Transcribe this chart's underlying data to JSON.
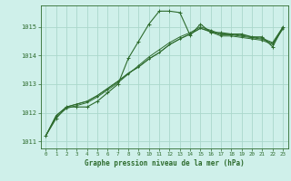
{
  "background_color": "#cff0ea",
  "grid_color": "#aad8cc",
  "line_color": "#2d6b2d",
  "xlabel": "Graphe pression niveau de la mer (hPa)",
  "ylim": [
    1010.75,
    1015.75
  ],
  "yticks": [
    1011,
    1012,
    1013,
    1014,
    1015
  ],
  "xlim": [
    -0.5,
    23.5
  ],
  "xticks": [
    0,
    1,
    2,
    3,
    4,
    5,
    6,
    7,
    8,
    9,
    10,
    11,
    12,
    13,
    14,
    15,
    16,
    17,
    18,
    19,
    20,
    21,
    22,
    23
  ],
  "series": [
    [
      1011.2,
      1011.8,
      1012.2,
      1012.2,
      1012.2,
      1012.4,
      1012.7,
      1013.0,
      1013.9,
      1014.5,
      1015.1,
      1015.55,
      1015.55,
      1015.5,
      1014.7,
      1015.1,
      1014.8,
      1014.8,
      1014.75,
      1014.75,
      1014.65,
      1014.65,
      1014.3,
      1015.0
    ],
    [
      1011.2,
      1011.85,
      1012.15,
      1012.25,
      1012.35,
      1012.55,
      1012.8,
      1013.05,
      1013.35,
      1013.65,
      1013.95,
      1014.2,
      1014.45,
      1014.65,
      1014.8,
      1015.0,
      1014.88,
      1014.75,
      1014.75,
      1014.7,
      1014.65,
      1014.6,
      1014.45,
      1015.0
    ],
    [
      1011.2,
      1011.9,
      1012.2,
      1012.3,
      1012.4,
      1012.6,
      1012.85,
      1013.1,
      1013.38,
      1013.6,
      1013.88,
      1014.1,
      1014.38,
      1014.58,
      1014.75,
      1014.95,
      1014.85,
      1014.72,
      1014.72,
      1014.67,
      1014.62,
      1014.57,
      1014.42,
      1014.97
    ],
    [
      1011.2,
      1011.9,
      1012.2,
      1012.3,
      1012.4,
      1012.6,
      1012.85,
      1013.1,
      1013.38,
      1013.6,
      1013.88,
      1014.1,
      1014.38,
      1014.58,
      1014.75,
      1014.95,
      1014.82,
      1014.68,
      1014.68,
      1014.63,
      1014.58,
      1014.53,
      1014.38,
      1014.93
    ]
  ]
}
